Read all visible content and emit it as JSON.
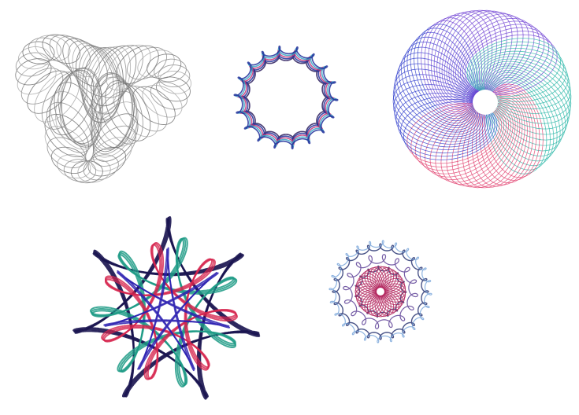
{
  "figures": [
    {
      "id": "fig-1",
      "name": "gray-trefoil-spirograph",
      "type": "spirograph",
      "colors": [
        "#8a8a8a",
        "#a8a8a8",
        "#6e6e6e"
      ],
      "lobes": 3,
      "rotation_deg": -20
    },
    {
      "id": "fig-2",
      "name": "blue-flower-spirograph",
      "type": "spirograph",
      "colors": [
        "#1f2f9a",
        "#3aa6c8",
        "#c23a7a",
        "#2b1d5e"
      ],
      "lobes": 18
    },
    {
      "id": "fig-3",
      "name": "rainbow-ring-spirograph",
      "type": "spirograph",
      "colors": [
        "#1fb3a3",
        "#e03a6a",
        "#2433c9",
        "#6a3ad1"
      ],
      "loops": 72
    },
    {
      "id": "fig-4",
      "name": "seven-point-star-spirograph",
      "type": "spirograph",
      "colors": [
        "#1a1450",
        "#1e9b86",
        "#d6244e",
        "#2a1fb0"
      ],
      "points": 7
    },
    {
      "id": "fig-5",
      "name": "multi-ring-spirograph",
      "type": "spirograph",
      "colors": [
        "#1e2a6b",
        "#6a9bd6",
        "#b0205a",
        "#4a2a8a"
      ],
      "lobes": 24
    }
  ]
}
